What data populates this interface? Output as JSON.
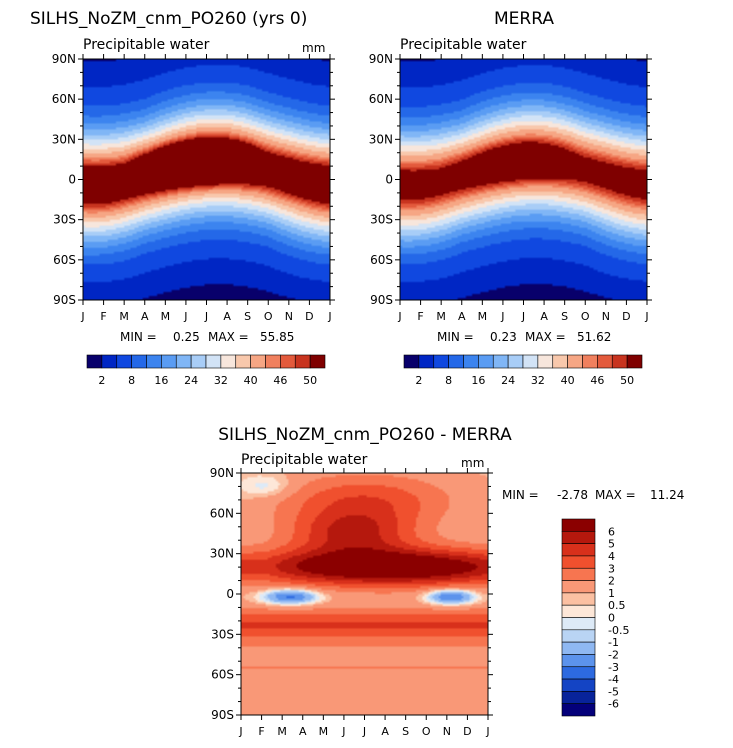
{
  "page": {
    "width": 733,
    "height": 748
  },
  "chart_data": [
    {
      "type": "heatmap",
      "title": "SILHS_NoZM_cnm_PO260 (yrs 0)",
      "subtitle": "Precipitable water",
      "units": "mm",
      "x_ticks": [
        "J",
        "F",
        "M",
        "A",
        "M",
        "J",
        "J",
        "A",
        "S",
        "O",
        "N",
        "D",
        "J"
      ],
      "y_ticks": [
        "90N",
        "60N",
        "30N",
        "0",
        "30S",
        "60S",
        "90S"
      ],
      "y_values": [
        90,
        60,
        30,
        0,
        -30,
        -60,
        -90
      ],
      "min_label": "MIN =",
      "min_value": "0.25",
      "max_label": "MAX =",
      "max_value": "55.85",
      "min": 0.25,
      "max": 55.85,
      "colorbar_labels": [
        "2",
        "8",
        "16",
        "24",
        "32",
        "40",
        "46",
        "50"
      ],
      "colorbar_levels": [
        2,
        4,
        8,
        12,
        16,
        20,
        24,
        28,
        32,
        36,
        40,
        44,
        46,
        48,
        50
      ],
      "colorbar_colors": [
        "#08006b",
        "#0026c4",
        "#1048e0",
        "#2468e8",
        "#3c84ef",
        "#5a9cf3",
        "#80b6f6",
        "#a8cdf7",
        "#d2e3f6",
        "#f7e6dc",
        "#f8c8ac",
        "#f6a684",
        "#f0805e",
        "#e35a3c",
        "#c8341f",
        "#7f0000"
      ],
      "ylim": [
        -90,
        90
      ],
      "field": "model"
    },
    {
      "type": "heatmap",
      "title": "MERRA",
      "subtitle": "Precipitable water",
      "x_ticks": [
        "J",
        "F",
        "M",
        "A",
        "M",
        "J",
        "J",
        "A",
        "S",
        "O",
        "N",
        "D",
        "J"
      ],
      "y_ticks": [
        "90N",
        "60N",
        "30N",
        "0",
        "30S",
        "60S",
        "90S"
      ],
      "y_values": [
        90,
        60,
        30,
        0,
        -30,
        -60,
        -90
      ],
      "min_label": "MIN =",
      "min_value": "0.23",
      "max_label": "MAX =",
      "max_value": "51.62",
      "min": 0.23,
      "max": 51.62,
      "colorbar_labels": [
        "2",
        "8",
        "16",
        "24",
        "32",
        "40",
        "46",
        "50"
      ],
      "colorbar_levels": [
        2,
        4,
        8,
        12,
        16,
        20,
        24,
        28,
        32,
        36,
        40,
        44,
        46,
        48,
        50
      ],
      "colorbar_colors": [
        "#08006b",
        "#0026c4",
        "#1048e0",
        "#2468e8",
        "#3c84ef",
        "#5a9cf3",
        "#80b6f6",
        "#a8cdf7",
        "#d2e3f6",
        "#f7e6dc",
        "#f8c8ac",
        "#f6a684",
        "#f0805e",
        "#e35a3c",
        "#c8341f",
        "#7f0000"
      ],
      "ylim": [
        -90,
        90
      ],
      "field": "obs"
    },
    {
      "type": "heatmap",
      "title": "SILHS_NoZM_cnm_PO260 - MERRA",
      "subtitle": "Precipitable water",
      "units": "mm",
      "x_ticks": [
        "J",
        "F",
        "M",
        "A",
        "M",
        "J",
        "J",
        "A",
        "S",
        "O",
        "N",
        "D",
        "J"
      ],
      "y_ticks": [
        "90N",
        "60N",
        "30N",
        "0",
        "30S",
        "60S",
        "90S"
      ],
      "y_values": [
        90,
        60,
        30,
        0,
        -30,
        -60,
        -90
      ],
      "min_label": "MIN =",
      "min_value": "-2.78",
      "max_label": "MAX =",
      "max_value": "11.24",
      "min": -2.78,
      "max": 11.24,
      "colorbar_labels": [
        "6",
        "5",
        "4",
        "3",
        "2",
        "1",
        "0.5",
        "0",
        "-0.5",
        "-1",
        "-2",
        "-3",
        "-4",
        "-5",
        "-6"
      ],
      "colorbar_levels": [
        6,
        5,
        4,
        3,
        2,
        1,
        0.5,
        0,
        -0.5,
        -1,
        -2,
        -3,
        -4,
        -5,
        -6
      ],
      "colorbar_colors": [
        "#8b0000",
        "#b5180d",
        "#d8301b",
        "#f0502e",
        "#f77550",
        "#f99877",
        "#fbc0a2",
        "#fde7d8",
        "#ddeaf7",
        "#b9d4f4",
        "#8fb8f2",
        "#5c93ec",
        "#2d6ae0",
        "#1444c4",
        "#08239a",
        "#04007a"
      ],
      "ylim": [
        -90,
        90
      ],
      "field": "diff"
    }
  ]
}
